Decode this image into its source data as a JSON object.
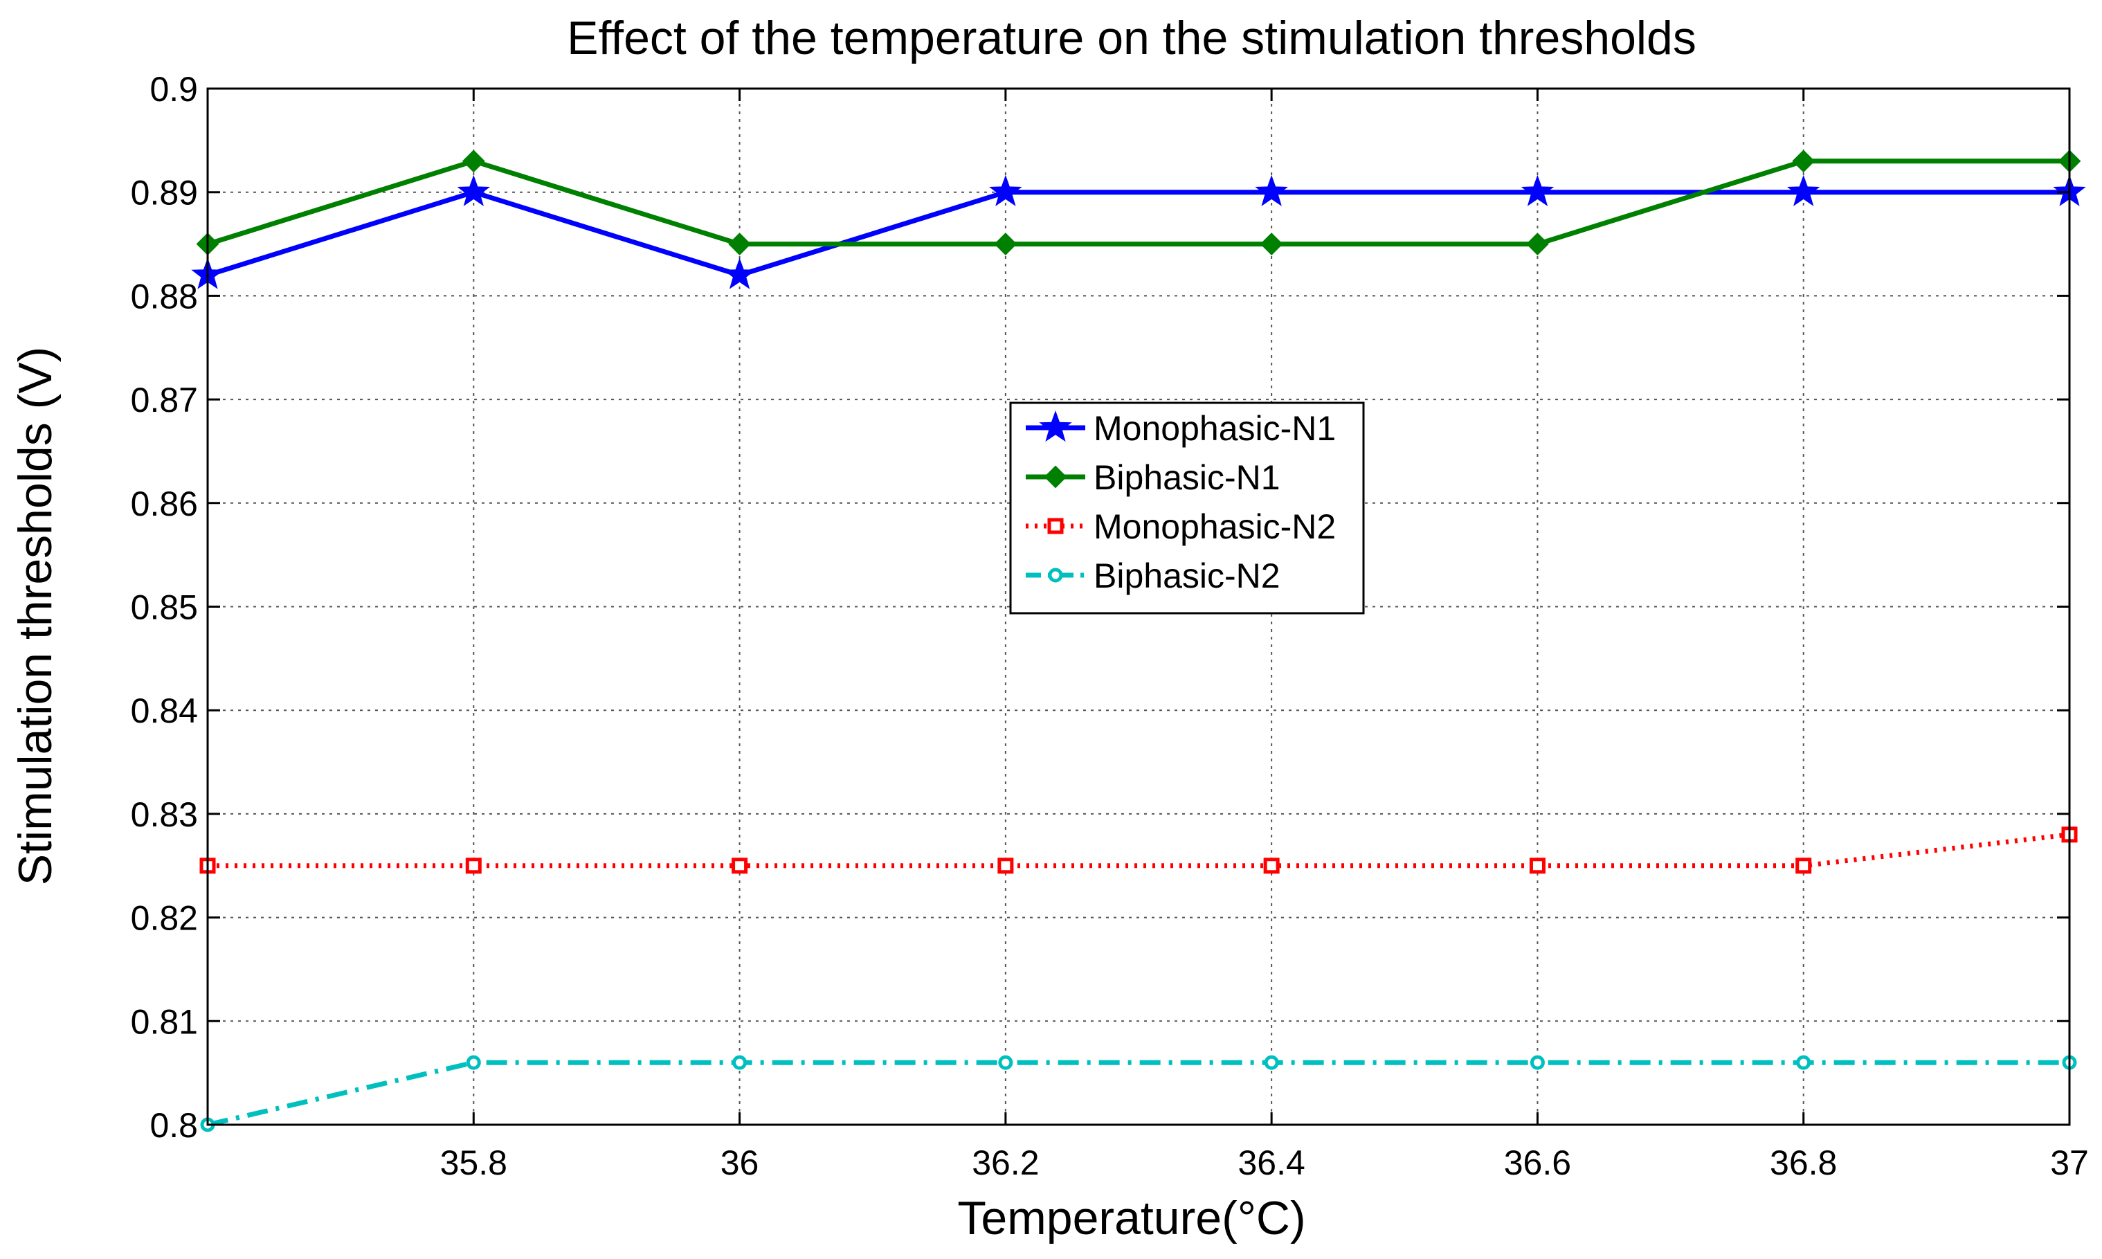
{
  "chart_data": {
    "type": "line",
    "title": "Effect of the temperature on the stimulation thresholds",
    "xlabel": "Temperature(°C)",
    "ylabel": "Stimulation thresholds (V)",
    "xlim": [
      35.6,
      37
    ],
    "ylim": [
      0.8,
      0.9
    ],
    "x": [
      35.6,
      35.8,
      36.0,
      36.2,
      36.4,
      36.6,
      36.8,
      37.0
    ],
    "xticks": [
      35.8,
      36.0,
      36.2,
      36.4,
      36.6,
      36.8,
      37.0
    ],
    "xtick_labels": [
      "35.8",
      "36",
      "36.2",
      "36.4",
      "36.6",
      "36.8",
      "37"
    ],
    "yticks": [
      0.8,
      0.81,
      0.82,
      0.83,
      0.84,
      0.85,
      0.86,
      0.87,
      0.88,
      0.89,
      0.9
    ],
    "ytick_labels": [
      "0.8",
      "0.81",
      "0.82",
      "0.83",
      "0.84",
      "0.85",
      "0.86",
      "0.87",
      "0.88",
      "0.89",
      "0.9"
    ],
    "grid": true,
    "legend_position": "center",
    "series": [
      {
        "name": "Monophasic-N1",
        "color": "#0000ff",
        "line_style": "solid",
        "marker": "star",
        "values": [
          0.882,
          0.89,
          0.882,
          0.89,
          0.89,
          0.89,
          0.89,
          0.89
        ]
      },
      {
        "name": "Biphasic-N1",
        "color": "#008000",
        "line_style": "solid",
        "marker": "diamond",
        "values": [
          0.885,
          0.893,
          0.885,
          0.885,
          0.885,
          0.885,
          0.893,
          0.893
        ]
      },
      {
        "name": "Monophasic-N2",
        "color": "#ff0000",
        "line_style": "dotted",
        "marker": "square",
        "values": [
          0.825,
          0.825,
          0.825,
          0.825,
          0.825,
          0.825,
          0.825,
          0.828
        ]
      },
      {
        "name": "Biphasic-N2",
        "color": "#00bfbf",
        "line_style": "dashdot",
        "marker": "circle",
        "values": [
          0.8,
          0.806,
          0.806,
          0.806,
          0.806,
          0.806,
          0.806,
          0.806
        ]
      }
    ]
  }
}
